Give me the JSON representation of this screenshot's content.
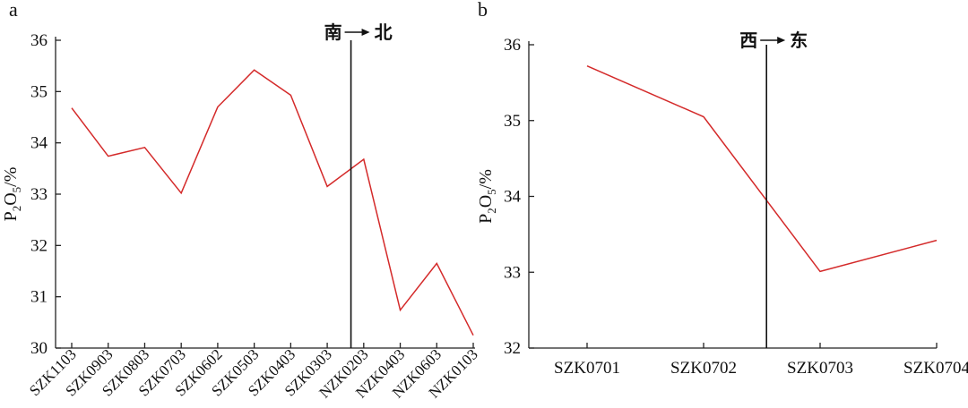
{
  "chart_data": [
    {
      "type": "line",
      "panel_label": "a",
      "categories": [
        "SZK1103",
        "SZK0903",
        "SZK0803",
        "SZK0703",
        "SZK0602",
        "SZK0503",
        "SZK0403",
        "SZK0303",
        "NZK0203",
        "NZK0403",
        "NZK0603",
        "NZK0103"
      ],
      "values": [
        34.68,
        33.74,
        33.91,
        33.02,
        34.7,
        35.42,
        34.93,
        33.15,
        33.68,
        30.74,
        31.65,
        30.25
      ],
      "ylabel_parts": [
        "P",
        "2",
        "O",
        "5",
        "/%"
      ],
      "ylim": [
        30,
        36
      ],
      "yticks": [
        30,
        31,
        32,
        33,
        34,
        35,
        36
      ],
      "direction": {
        "left": "南",
        "right": "北"
      },
      "divider_between": [
        "SZK0303",
        "NZK0203"
      ],
      "divider_frac": 0.65,
      "color": "#d42a2a",
      "grid": false
    },
    {
      "type": "line",
      "panel_label": "b",
      "categories": [
        "SZK0701",
        "SZK0702",
        "SZK0703",
        "SZK0704"
      ],
      "values": [
        35.72,
        35.05,
        33.01,
        33.42
      ],
      "ylabel_parts": [
        "P",
        "2",
        "O",
        "5",
        "/%"
      ],
      "ylim": [
        32,
        36
      ],
      "yticks": [
        32,
        33,
        34,
        35,
        36
      ],
      "direction": {
        "left": "西",
        "right": "东"
      },
      "divider_between": [
        "SZK0702",
        "SZK0703"
      ],
      "divider_frac": 0.54,
      "color": "#d42a2a",
      "grid": false
    }
  ]
}
